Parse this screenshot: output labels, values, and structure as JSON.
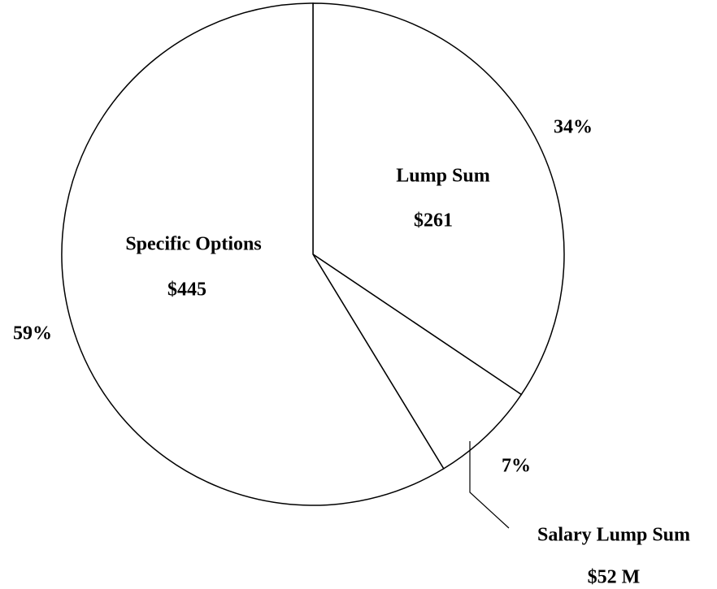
{
  "chart_data": {
    "type": "pie",
    "categories": [
      "Lump Sum",
      "Salary Lump Sum",
      "Specific Options"
    ],
    "values": [
      261,
      52,
      445
    ],
    "value_labels": [
      "$261",
      "$52 M",
      "$445"
    ],
    "percents": [
      34,
      7,
      59
    ],
    "percent_labels": [
      "34%",
      "7%",
      "59%"
    ],
    "color": "#ffffff"
  }
}
